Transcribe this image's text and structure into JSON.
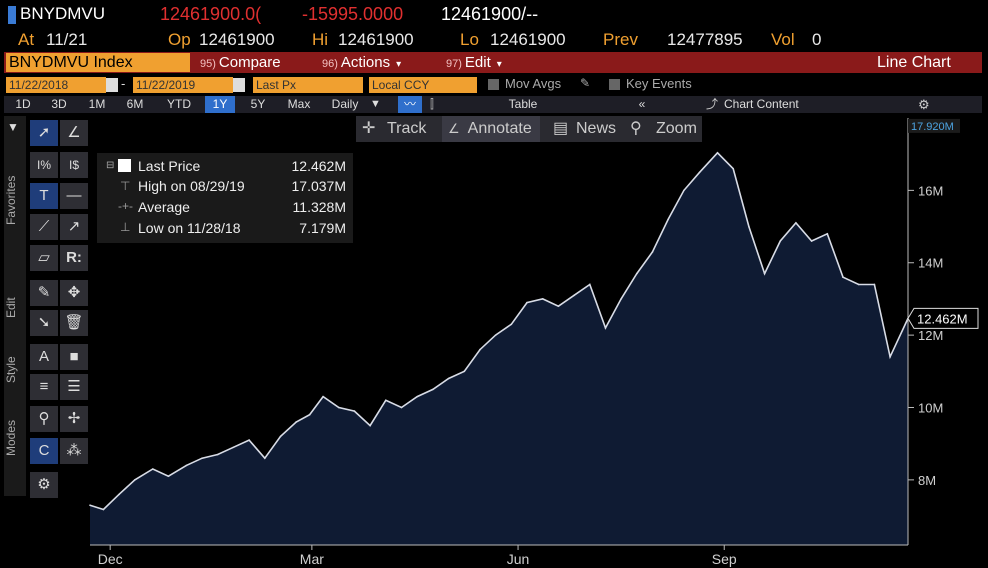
{
  "header": {
    "ticker": "BNYDMVU",
    "last": "12461900.0(",
    "change": "-15995.0000",
    "bid_ask": "12461900/--",
    "at_label": "At",
    "at_value": "11/21",
    "op_label": "Op",
    "op_value": "12461900",
    "hi_label": "Hi",
    "hi_value": "12461900",
    "lo_label": "Lo",
    "lo_value": "12461900",
    "prev_label": "Prev",
    "prev_value": "12477895",
    "vol_label": "Vol",
    "vol_value": "0"
  },
  "command_bar": {
    "index": "BNYDMVU Index",
    "compare_num": "95)",
    "compare": "Compare",
    "actions_num": "96)",
    "actions": "Actions",
    "edit_num": "97)",
    "edit": "Edit",
    "chart_type": "Line Chart"
  },
  "date_row": {
    "start": "11/22/2018",
    "end": "11/22/2019",
    "field": "Last Px",
    "currency": "Local CCY",
    "mov_avgs": "Mov Avgs",
    "key_events": "Key Events"
  },
  "period_row": {
    "periods": [
      "1D",
      "3D",
      "1M",
      "6M",
      "YTD",
      "1Y",
      "5Y",
      "Max"
    ],
    "active": "1Y",
    "frequency": "Daily",
    "table": "Table",
    "collapse": "«",
    "chart_content": "Chart Content",
    "settings_icon": "gear-icon"
  },
  "toolbar": {
    "track": "Track",
    "annotate": "Annotate",
    "news": "News",
    "zoom": "Zoom"
  },
  "side_tabs": {
    "favorites": "Favorites",
    "edit": "Edit",
    "style": "Style",
    "modes": "Modes"
  },
  "tools": {
    "row4_label": "R:"
  },
  "legend": {
    "last_label": "Last Price",
    "last_value": "12.462M",
    "high_label": "High on 08/29/19",
    "high_value": "17.037M",
    "avg_label": "Average",
    "avg_value": "11.328M",
    "low_label": "Low on 11/28/18",
    "low_value": "7.179M"
  },
  "colors": {
    "accent_orange": "#f0a030",
    "bar_red": "#8a1a1a",
    "area_fill": "#0f1b33",
    "line": "#d8dce6"
  },
  "chart_data": {
    "type": "area",
    "x_start": "2018-11-22",
    "x_end": "2019-11-22",
    "x_ticks": [
      {
        "label": "Dec",
        "date": "2018-12-01"
      },
      {
        "label": "Mar",
        "date": "2019-03-01"
      },
      {
        "label": "Jun",
        "date": "2019-06-01"
      },
      {
        "label": "Sep",
        "date": "2019-09-01"
      }
    ],
    "ylim": [
      6.2,
      18.0
    ],
    "y_ticks": [
      {
        "label": "8M",
        "value": 8
      },
      {
        "label": "10M",
        "value": 10
      },
      {
        "label": "12M",
        "value": 12
      },
      {
        "label": "14M",
        "value": 14
      },
      {
        "label": "16M",
        "value": 16
      }
    ],
    "top_label": "17.920M",
    "top_value": 17.92,
    "last_label": "12.462M",
    "last_value": 12.462,
    "grid": false,
    "series": [
      {
        "x": [
          "2018-11-22",
          "2018-11-28",
          "2018-12-05",
          "2018-12-12",
          "2018-12-20",
          "2018-12-27",
          "2019-01-04",
          "2019-01-11",
          "2019-01-18",
          "2019-01-25",
          "2019-02-01",
          "2019-02-08",
          "2019-02-15",
          "2019-02-22",
          "2019-02-28",
          "2019-03-06",
          "2019-03-13",
          "2019-03-20",
          "2019-03-27",
          "2019-04-03",
          "2019-04-10",
          "2019-04-17",
          "2019-04-24",
          "2019-05-01",
          "2019-05-08",
          "2019-05-15",
          "2019-05-22",
          "2019-05-29",
          "2019-06-05",
          "2019-06-12",
          "2019-06-19",
          "2019-06-26",
          "2019-07-03",
          "2019-07-10",
          "2019-07-17",
          "2019-07-24",
          "2019-07-31",
          "2019-08-07",
          "2019-08-14",
          "2019-08-21",
          "2019-08-29",
          "2019-09-05",
          "2019-09-12",
          "2019-09-19",
          "2019-09-26",
          "2019-10-03",
          "2019-10-10",
          "2019-10-17",
          "2019-10-24",
          "2019-10-31",
          "2019-11-07",
          "2019-11-14",
          "2019-11-22"
        ],
        "y": [
          7.3,
          7.18,
          7.6,
          8.0,
          8.3,
          8.1,
          8.4,
          8.6,
          8.7,
          8.9,
          9.1,
          8.6,
          9.2,
          9.6,
          9.8,
          10.3,
          10.0,
          9.9,
          9.5,
          10.2,
          10.0,
          10.3,
          10.5,
          10.8,
          11.0,
          11.6,
          12.0,
          12.3,
          12.9,
          13.0,
          12.8,
          13.1,
          13.4,
          12.2,
          13.0,
          13.7,
          14.3,
          15.2,
          16.0,
          16.5,
          17.037,
          16.6,
          15.0,
          13.7,
          14.6,
          15.1,
          14.6,
          14.8,
          13.6,
          13.4,
          13.4,
          11.4,
          12.462
        ]
      }
    ]
  }
}
